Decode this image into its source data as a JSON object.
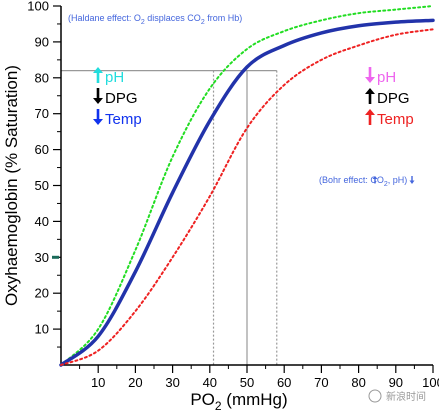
{
  "chart_data": {
    "type": "line",
    "xlabel": {
      "prefix": "PO",
      "subscript": "2",
      "suffix": " (mmHg)"
    },
    "ylabel": "Oxyhaemoglobin (% Saturation)",
    "x": [
      0,
      10,
      20,
      30,
      40,
      50,
      60,
      70,
      80,
      90,
      100
    ],
    "xlim": [
      0,
      100
    ],
    "ylim": [
      0,
      100
    ],
    "xticks": [
      "10",
      "20",
      "30",
      "40",
      "50",
      "60",
      "70",
      "80",
      "90",
      "100"
    ],
    "yticks": [
      "10",
      "20",
      "30",
      "40",
      "50",
      "60",
      "70",
      "80",
      "90",
      "100"
    ],
    "series": [
      {
        "style": "dotted",
        "color": "#22dd22",
        "values": [
          0,
          10,
          32,
          58,
          77,
          88,
          93,
          96,
          98,
          99,
          100
        ]
      },
      {
        "style": "solid",
        "color": "#2233aa",
        "values": [
          0,
          8,
          26,
          48,
          68,
          83,
          89,
          92.5,
          94.5,
          95.5,
          96
        ]
      },
      {
        "style": "dotted",
        "color": "#ee2222",
        "values": [
          0,
          4,
          15,
          30,
          47,
          66,
          78,
          85,
          89,
          92,
          93.5
        ]
      }
    ],
    "reference_lines": {
      "horizontal_y": 82,
      "vertical_x": [
        41,
        50,
        58
      ]
    },
    "haldane_note": {
      "text_before": "(Haldane effect: O",
      "sub": "2",
      "text_middle": " displaces CO",
      "sub2": "2",
      "text_after": " from Hb)",
      "color": "#4466dd"
    },
    "bohr_note": {
      "text": "(Bohr effect:",
      "rest1": "CO",
      "sub": "2",
      "rest2": ",",
      "rest3": "pH)",
      "color": "#4466dd"
    },
    "left_factors": [
      {
        "arrow": "up",
        "label": "pH",
        "color": "#22dddd"
      },
      {
        "arrow": "down",
        "label": "DPG",
        "color": "#000000"
      },
      {
        "arrow": "down",
        "label": "Temp",
        "color": "#1133ee"
      }
    ],
    "right_factors": [
      {
        "arrow": "down",
        "label": "pH",
        "color": "#ee66ee"
      },
      {
        "arrow": "up",
        "label": "DPG",
        "color": "#000000"
      },
      {
        "arrow": "up",
        "label": "Temp",
        "color": "#ee2222"
      }
    ],
    "watermark": "新浪时间"
  }
}
